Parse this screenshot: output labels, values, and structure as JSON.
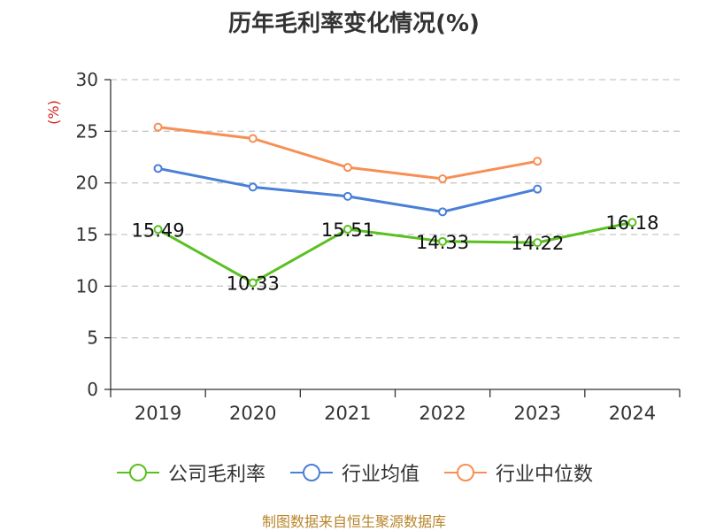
{
  "chart_data": {
    "type": "line",
    "title": "历年毛利率变化情况(%)",
    "ylabel": "(%)",
    "xlabel": "",
    "categories": [
      "2019",
      "2020",
      "2021",
      "2022",
      "2023",
      "2024"
    ],
    "ylim": [
      0,
      30
    ],
    "yticks": [
      0,
      5,
      10,
      15,
      20,
      25,
      30
    ],
    "grid": true,
    "legend_position": "bottom",
    "series": [
      {
        "name": "公司毛利率",
        "color": "#5ac020",
        "values": [
          15.49,
          10.33,
          15.51,
          14.33,
          14.22,
          16.18
        ],
        "labels": [
          "15.49",
          "10.33",
          "15.51",
          "14.33",
          "14.22",
          "16.18"
        ]
      },
      {
        "name": "行业均值",
        "color": "#4a7fd8",
        "values": [
          21.4,
          19.6,
          18.7,
          17.2,
          19.4,
          null
        ]
      },
      {
        "name": "行业中位数",
        "color": "#f78f55",
        "values": [
          25.4,
          24.3,
          21.5,
          20.4,
          22.1,
          null
        ]
      }
    ],
    "source": "制图数据来自恒生聚源数据库"
  }
}
